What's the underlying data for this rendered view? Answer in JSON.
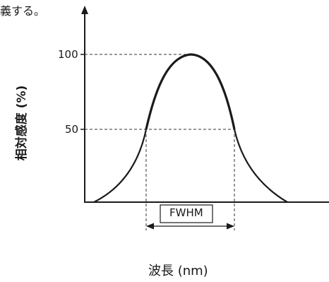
{
  "text": {
    "fragment": "義する。",
    "y_axis_label": "相対感度 (%)",
    "x_axis_label": "波長 (nm)",
    "fwhm_label": "FWHM"
  },
  "chart_data": {
    "type": "line",
    "title": "",
    "xlabel": "波長 (nm)",
    "ylabel": "相対感度 (%)",
    "y_ticks": [
      "100",
      "50"
    ],
    "y_tick_values": [
      100,
      50
    ],
    "series": [
      {
        "shape": "single peak",
        "peak": 100
      }
    ],
    "annotations": [
      "FWHM"
    ],
    "grid": false
  }
}
